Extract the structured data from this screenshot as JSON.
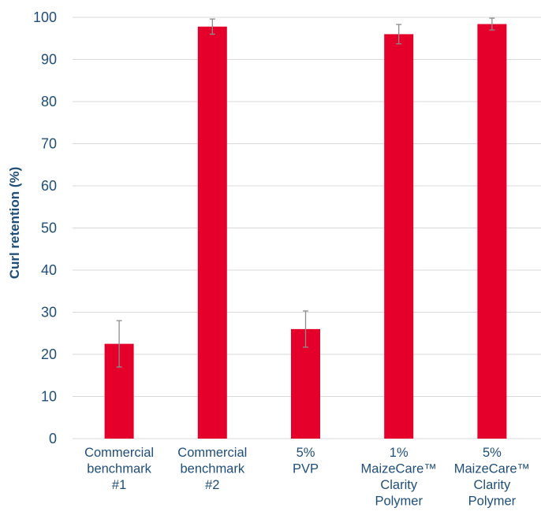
{
  "chart_data": {
    "type": "bar",
    "ylabel": "Curl retention (%)",
    "xlabel": "",
    "ylim": [
      0,
      100
    ],
    "yticks": [
      0,
      10,
      20,
      30,
      40,
      50,
      60,
      70,
      80,
      90,
      100
    ],
    "grid": true,
    "categories": [
      [
        "Commercial",
        "benchmark",
        "#1"
      ],
      [
        "Commercial",
        "benchmark",
        "#2"
      ],
      [
        "5%",
        "PVP"
      ],
      [
        "1%",
        "MaizeCare™",
        "Clarity",
        "Polymer"
      ],
      [
        "5%",
        "MaizeCare™",
        "Clarity",
        "Polymer"
      ]
    ],
    "values": [
      22.5,
      97.8,
      26,
      96,
      98.4
    ],
    "errors": [
      5.5,
      1.8,
      4.3,
      2.3,
      1.4
    ],
    "colors": {
      "bar": "#e4002b",
      "axis_text": "#1f4e79",
      "grid": "#d9d9d9",
      "error_bar": "#8c8c8c"
    }
  }
}
